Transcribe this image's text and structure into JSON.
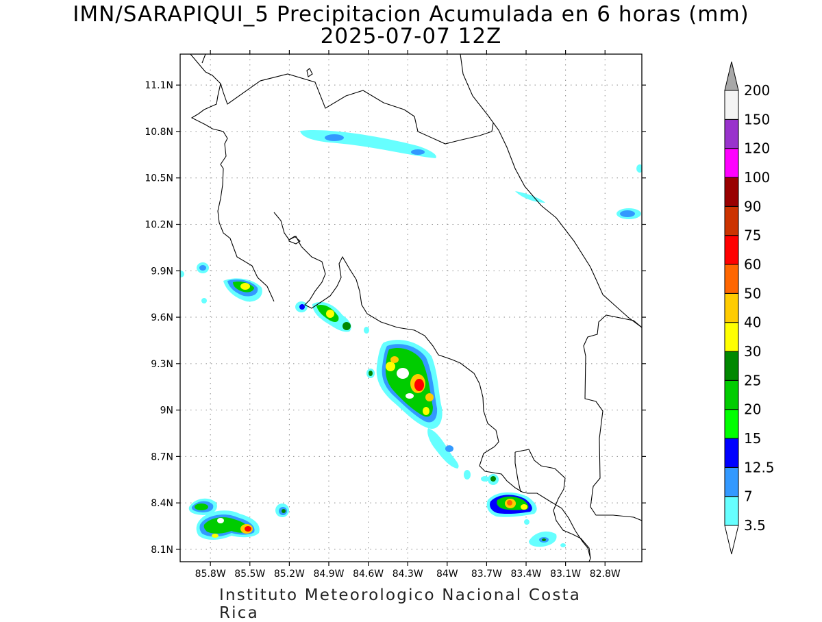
{
  "title": {
    "line1": "IMN/SARAPIQUI_5 Precipitacion Acumulada en 6 horas (mm)",
    "line2": "2025-07-07 12Z"
  },
  "footer": "Instituto Meteorologico Nacional Costa Rica",
  "map": {
    "lon_range": [
      -86.03,
      -82.52
    ],
    "lat_range": [
      8.02,
      11.3
    ],
    "lat_ticks": [
      {
        "value": 8.1,
        "label": "8.1N"
      },
      {
        "value": 8.4,
        "label": "8.4N"
      },
      {
        "value": 8.7,
        "label": "8.7N"
      },
      {
        "value": 9.0,
        "label": "9N"
      },
      {
        "value": 9.3,
        "label": "9.3N"
      },
      {
        "value": 9.6,
        "label": "9.6N"
      },
      {
        "value": 9.9,
        "label": "9.9N"
      },
      {
        "value": 10.2,
        "label": "10.2N"
      },
      {
        "value": 10.5,
        "label": "10.5N"
      },
      {
        "value": 10.8,
        "label": "10.8N"
      },
      {
        "value": 11.1,
        "label": "11.1N"
      }
    ],
    "lon_ticks": [
      {
        "value": -85.8,
        "label": "85.8W"
      },
      {
        "value": -85.5,
        "label": "85.5W"
      },
      {
        "value": -85.2,
        "label": "85.2W"
      },
      {
        "value": -84.9,
        "label": "84.9W"
      },
      {
        "value": -84.6,
        "label": "84.6W"
      },
      {
        "value": -84.3,
        "label": "84.3W"
      },
      {
        "value": -84.0,
        "label": "84W"
      },
      {
        "value": -83.7,
        "label": "83.7W"
      },
      {
        "value": -83.4,
        "label": "83.4W"
      },
      {
        "value": -83.1,
        "label": "83.1W"
      },
      {
        "value": -82.8,
        "label": "82.8W"
      }
    ],
    "grid": true
  },
  "colorbar": {
    "levels": [
      "3.5",
      "7",
      "12.5",
      "15",
      "20",
      "25",
      "30",
      "40",
      "50",
      "60",
      "75",
      "90",
      "100",
      "120",
      "150",
      "200"
    ],
    "colors": [
      "#66ffff",
      "#3399ff",
      "#0000ff",
      "#00ff00",
      "#00cc00",
      "#008800",
      "#ffff00",
      "#ffcc00",
      "#ff6600",
      "#ff0000",
      "#cc3300",
      "#990000",
      "#ff00ff",
      "#9933cc",
      "#f4f4f4"
    ],
    "top_arrow_color": "#a8a8a8",
    "bottom_arrow_color": "#ffffff"
  }
}
